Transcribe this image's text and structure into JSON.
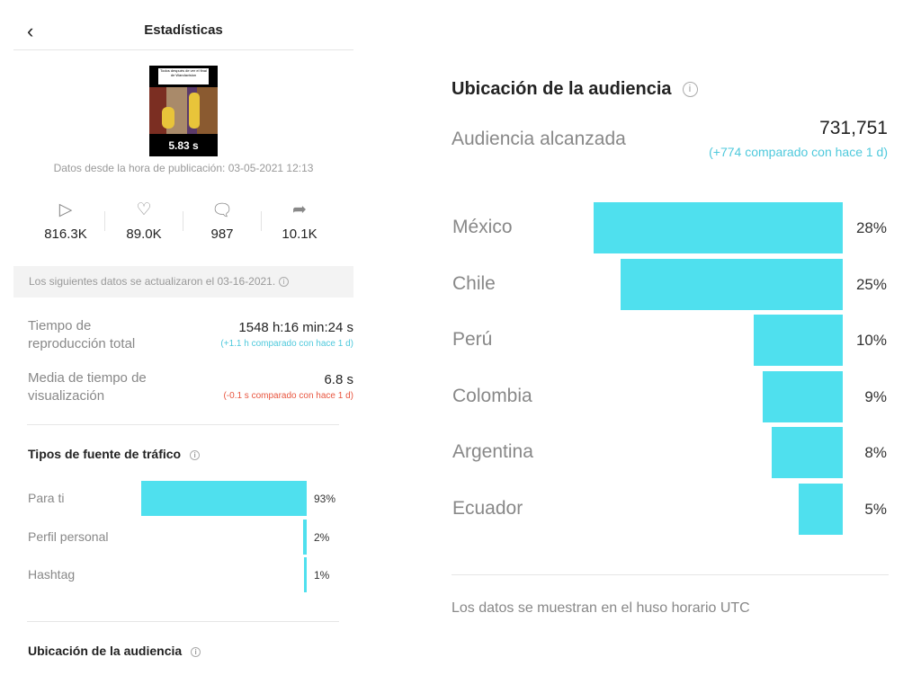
{
  "header": {
    "title": "Estadísticas",
    "back_icon": "chevron-left-icon"
  },
  "video": {
    "caption": "Todos después de ver el final de Wandavision",
    "duration": "5.83 s",
    "since": "Datos desde la hora de publicación: 03-05-2021 12:13"
  },
  "stats": [
    {
      "icon": "play-icon",
      "value": "816.3K"
    },
    {
      "icon": "heart-icon",
      "value": "89.0K"
    },
    {
      "icon": "comment-icon",
      "value": "987"
    },
    {
      "icon": "share-icon",
      "value": "10.1K"
    }
  ],
  "banner": "Los siguientes datos se actualizaron el 03-16-2021.",
  "metrics": [
    {
      "label1": "Tiempo de",
      "label2": "reproducción total",
      "value": "1548 h:16 min:24 s",
      "delta": "(+1.1 h comparado con hace 1 d)",
      "delta_color": "#4fc9dc"
    },
    {
      "label1": "Media de tiempo de",
      "label2": "visualización",
      "value": "6.8 s",
      "delta": "(-0.1 s comparado con hace 1 d)",
      "delta_color": "#e8553f"
    }
  ],
  "traffic": {
    "title": "Tipos de fuente de tráfico",
    "items": [
      {
        "label": "Para ti",
        "value": 93,
        "text": "93%"
      },
      {
        "label": "Perfil personal",
        "value": 2,
        "text": "2%"
      },
      {
        "label": "Hashtag",
        "value": 1,
        "text": "1%"
      }
    ]
  },
  "audience_left_title": "Ubicación de la audiencia",
  "audience": {
    "title": "Ubicación de la audiencia",
    "reach_label": "Audiencia alcanzada",
    "reach_value": "731,751",
    "reach_delta": "(+774 comparado con hace 1 d)",
    "footer": "Los datos se muestran en el huso horario UTC"
  },
  "colors": {
    "bar": "#4fe0ee",
    "positive": "#4fc9dc",
    "negative": "#e8553f"
  },
  "chart_data": [
    {
      "type": "bar",
      "orientation": "horizontal",
      "categories": [
        "Para ti",
        "Perfil personal",
        "Hashtag"
      ],
      "values": [
        93,
        2,
        1
      ],
      "unit": "%"
    },
    {
      "type": "bar",
      "orientation": "horizontal",
      "categories": [
        "México",
        "Chile",
        "Perú",
        "Colombia",
        "Argentina",
        "Ecuador"
      ],
      "values": [
        28,
        25,
        10,
        9,
        8,
        5
      ],
      "unit": "%"
    }
  ]
}
